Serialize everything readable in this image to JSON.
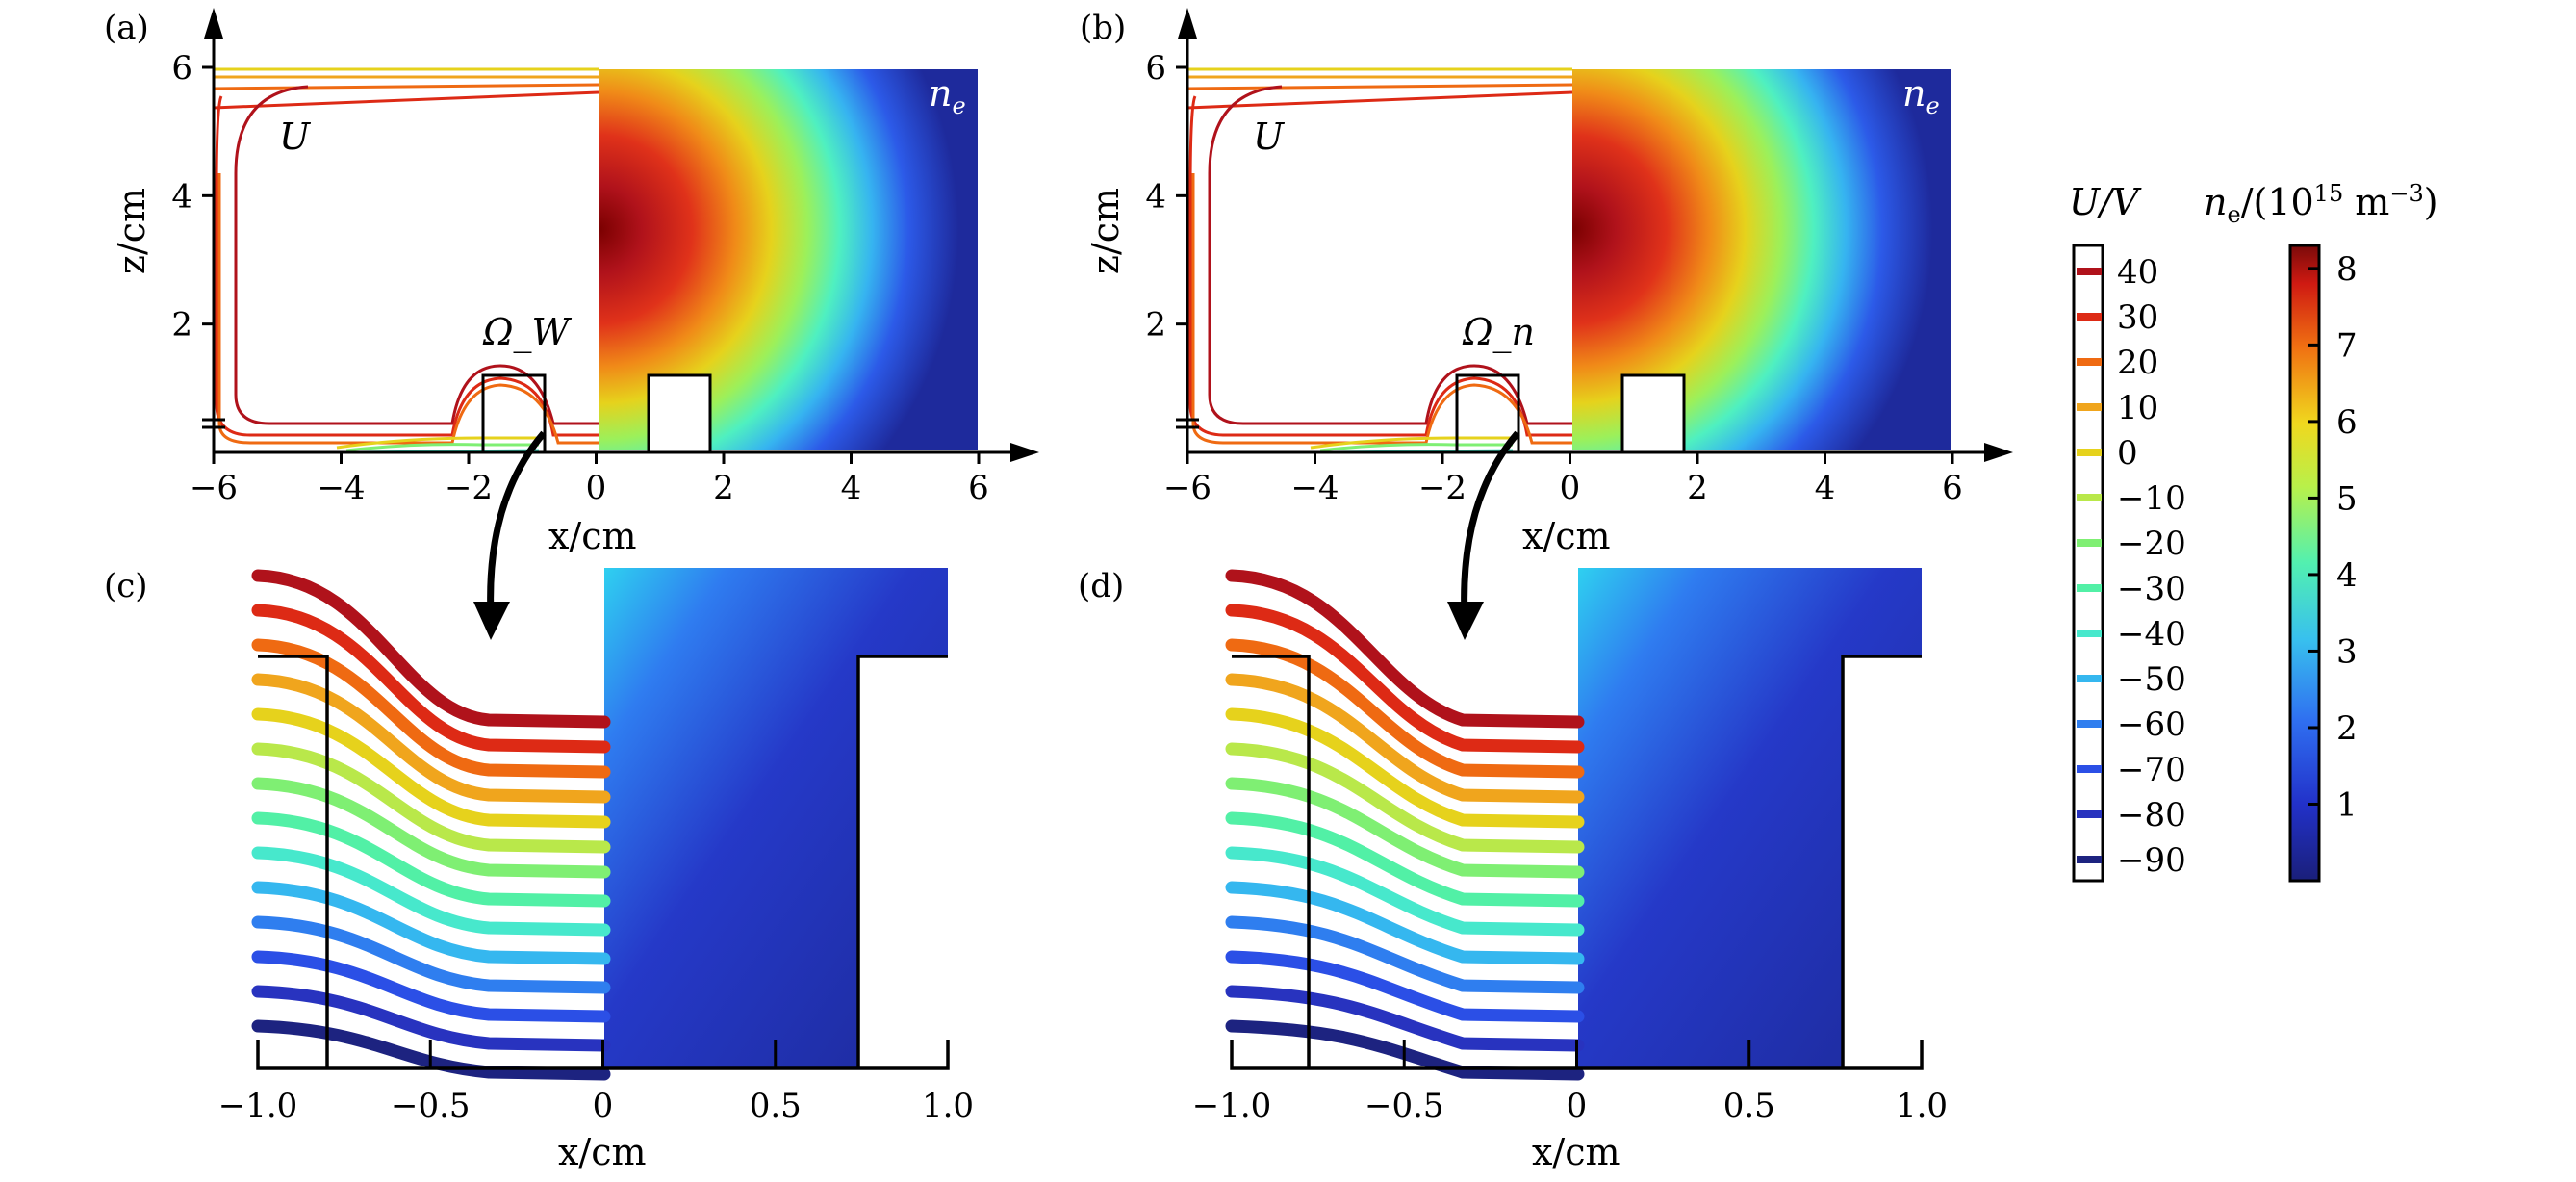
{
  "chart_data": [
    {
      "panel": "(a)",
      "type": "contour+heatmap",
      "xlabel": "x/cm",
      "ylabel": "z/cm",
      "xticks": [
        "−6",
        "−4",
        "−2",
        "0",
        "2",
        "4",
        "6"
      ],
      "yticks": [
        "2",
        "4",
        "6"
      ],
      "xlim": [
        -6,
        6
      ],
      "ylim": [
        0,
        6
      ],
      "left_label": "U",
      "right_label": "n_e",
      "box_label": "Ω_W",
      "left_plot": "contours of U",
      "right_plot": "n_e colormap"
    },
    {
      "panel": "(b)",
      "type": "contour+heatmap",
      "xlabel": "x/cm",
      "ylabel": "z/cm",
      "xticks": [
        "−6",
        "−4",
        "−2",
        "0",
        "2",
        "4",
        "6"
      ],
      "yticks": [
        "2",
        "4",
        "6"
      ],
      "xlim": [
        -6,
        6
      ],
      "ylim": [
        0,
        6
      ],
      "left_label": "U",
      "right_label": "n_e",
      "box_label": "Ω_n"
    },
    {
      "panel": "(c)",
      "type": "contour+heatmap",
      "xlabel": "x/cm",
      "xticks": [
        "−1.0",
        "−0.5",
        "0",
        "0.5",
        "1.0"
      ],
      "xlim": [
        -1,
        1
      ],
      "contour_levels_V": [
        40,
        30,
        20,
        10,
        0,
        -10,
        -20,
        -30,
        -40,
        -50,
        -60,
        -70,
        -80,
        -90
      ]
    },
    {
      "panel": "(d)",
      "type": "contour+heatmap",
      "xlabel": "x/cm",
      "xticks": [
        "−1.0",
        "−0.5",
        "0",
        "0.5",
        "1.0"
      ],
      "xlim": [
        -1,
        1
      ],
      "contour_levels_V": [
        40,
        30,
        20,
        10,
        0,
        -10,
        -20,
        -30,
        -40,
        -50,
        -60,
        -70,
        -80,
        -90
      ]
    }
  ],
  "legend_U": {
    "title": "U/V",
    "entries": [
      {
        "label": "40",
        "color": "#b0121b"
      },
      {
        "label": "30",
        "color": "#dd2a15"
      },
      {
        "label": "20",
        "color": "#ef6a12"
      },
      {
        "label": "10",
        "color": "#f0a51d"
      },
      {
        "label": "0",
        "color": "#e6d21c"
      },
      {
        "label": "−10",
        "color": "#b9e84a"
      },
      {
        "label": "−20",
        "color": "#7fef73"
      },
      {
        "label": "−30",
        "color": "#52f0a6"
      },
      {
        "label": "−40",
        "color": "#47e8cc"
      },
      {
        "label": "−50",
        "color": "#35b7ef"
      },
      {
        "label": "−60",
        "color": "#2f7eef"
      },
      {
        "label": "−70",
        "color": "#2b4fe6"
      },
      {
        "label": "−80",
        "color": "#2833bf"
      },
      {
        "label": "−90",
        "color": "#1d2380"
      }
    ]
  },
  "colorbar_ne": {
    "title_main": "n",
    "title_sub": "e",
    "title_rest": "/(10",
    "title_sup": "15",
    "title_unit": " m",
    "title_unit_sup": "−3",
    "title_close": ")",
    "min": 0,
    "max": 8.3,
    "ticks": [
      "1",
      "2",
      "3",
      "4",
      "5",
      "6",
      "7",
      "8"
    ],
    "tick_values": [
      1,
      2,
      3,
      4,
      5,
      6,
      7,
      8
    ]
  }
}
